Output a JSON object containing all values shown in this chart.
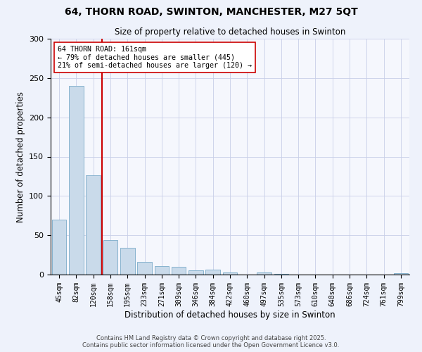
{
  "title1": "64, THORN ROAD, SWINTON, MANCHESTER, M27 5QT",
  "title2": "Size of property relative to detached houses in Swinton",
  "xlabel": "Distribution of detached houses by size in Swinton",
  "ylabel": "Number of detached properties",
  "categories": [
    "45sqm",
    "82sqm",
    "120sqm",
    "158sqm",
    "195sqm",
    "233sqm",
    "271sqm",
    "309sqm",
    "346sqm",
    "384sqm",
    "422sqm",
    "460sqm",
    "497sqm",
    "535sqm",
    "573sqm",
    "610sqm",
    "648sqm",
    "686sqm",
    "724sqm",
    "761sqm",
    "799sqm"
  ],
  "values": [
    70,
    240,
    126,
    44,
    34,
    16,
    11,
    10,
    5,
    6,
    3,
    0,
    3,
    1,
    0,
    0,
    0,
    0,
    0,
    0,
    2
  ],
  "bar_color": "#c9daea",
  "bar_edge_color": "#7aaac8",
  "highlight_line_color": "#cc0000",
  "annotation_text": "64 THORN ROAD: 161sqm\n← 79% of detached houses are smaller (445)\n21% of semi-detached houses are larger (120) →",
  "annotation_box_color": "#ffffff",
  "annotation_box_edge_color": "#cc0000",
  "ylim": [
    0,
    300
  ],
  "yticks": [
    0,
    50,
    100,
    150,
    200,
    250,
    300
  ],
  "footer_line1": "Contains HM Land Registry data © Crown copyright and database right 2025.",
  "footer_line2": "Contains public sector information licensed under the Open Government Licence v3.0.",
  "bg_color": "#eef2fb",
  "plot_bg_color": "#f5f7fd",
  "grid_color": "#c8cfe8"
}
